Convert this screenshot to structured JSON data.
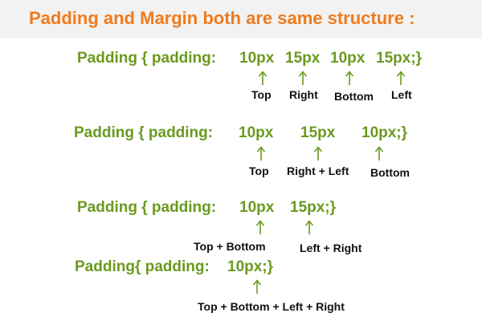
{
  "colors": {
    "title": "#f07b1d",
    "code": "#6a9a1f",
    "arrow": "#6a9a1f",
    "labels": "#111111",
    "header_bg": "#f2f2f2"
  },
  "title": "Padding and Margin both are same structure :",
  "rows": [
    {
      "prefix": "Padding { padding:",
      "values": [
        "10px",
        "15px",
        "10px",
        "15px;}"
      ],
      "labels": [
        "Top",
        "Right",
        "Bottom",
        "Left"
      ]
    },
    {
      "prefix": "Padding { padding:",
      "values": [
        "10px",
        "15px",
        "10px;}"
      ],
      "labels": [
        "Top",
        "Right + Left",
        "Bottom"
      ]
    },
    {
      "prefix": "Padding { padding:",
      "values": [
        "10px",
        "15px;}"
      ],
      "labels": [
        "Top + Bottom",
        "Left + Right"
      ]
    },
    {
      "prefix": "Padding{ padding:",
      "values": [
        "10px;}"
      ],
      "labels": [
        "Top + Bottom + Left + Right"
      ]
    }
  ],
  "icons": {
    "arrow": "up-arrow-icon"
  }
}
